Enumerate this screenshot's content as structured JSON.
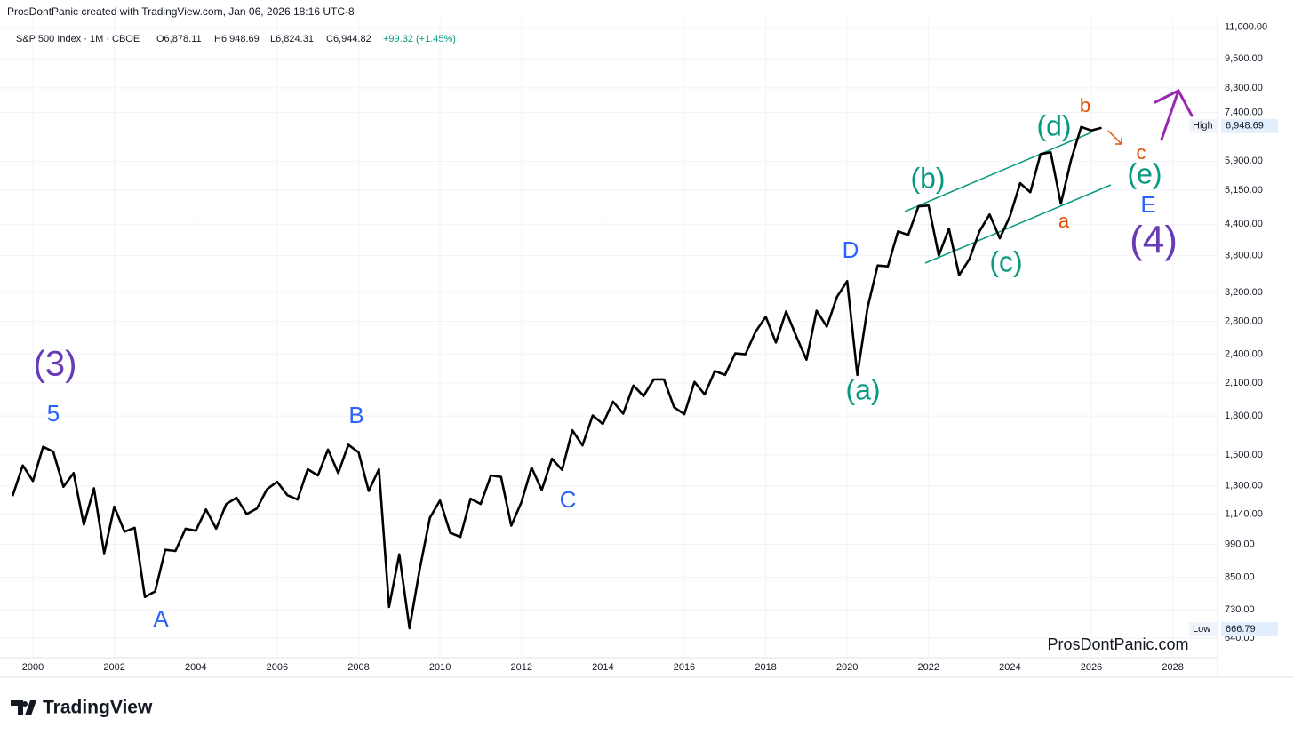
{
  "header": {
    "text": "ProsDontPanic created with TradingView.com, Jan 06, 2026 18:16 UTC-8"
  },
  "legend": {
    "symbol": "S&P 500 Index · 1M · CBOE",
    "ohlc": [
      "O6,878.11",
      "H6,948.69",
      "L6,824.31",
      "C6,944.82"
    ],
    "change": "+99.32 (+1.45%)"
  },
  "watermark": "ProsDontPanic.com",
  "brand": "TradingView",
  "chart_data": {
    "type": "line",
    "log_scale": true,
    "grid": true,
    "xlim": [
      1999.41,
      2028.99
    ],
    "xticks": [
      2000,
      2002,
      2004,
      2006,
      2008,
      2010,
      2012,
      2014,
      2016,
      2018,
      2020,
      2022,
      2024,
      2026,
      2028
    ],
    "ylim": [
      589,
      11600
    ],
    "yticks": [
      {
        "value": 640,
        "label": "640.00"
      },
      {
        "value": 730,
        "label": "730.00"
      },
      {
        "value": 850,
        "label": "850.00"
      },
      {
        "value": 990,
        "label": "990.00"
      },
      {
        "value": 1140,
        "label": "1,140.00"
      },
      {
        "value": 1300,
        "label": "1,300.00"
      },
      {
        "value": 1500,
        "label": "1,500.00"
      },
      {
        "value": 1800,
        "label": "1,800.00"
      },
      {
        "value": 2100,
        "label": "2,100.00"
      },
      {
        "value": 2400,
        "label": "2,400.00"
      },
      {
        "value": 2800,
        "label": "2,800.00"
      },
      {
        "value": 3200,
        "label": "3,200.00"
      },
      {
        "value": 3800,
        "label": "3,800.00"
      },
      {
        "value": 4400,
        "label": "4,400.00"
      },
      {
        "value": 5150,
        "label": "5,150.00"
      },
      {
        "value": 5900,
        "label": "5,900.00"
      },
      {
        "value": 7400,
        "label": "7,400.00"
      },
      {
        "value": 8300,
        "label": "8,300.00"
      },
      {
        "value": 9500,
        "label": "9,500.00"
      },
      {
        "value": 11000,
        "label": "11,000.00"
      }
    ],
    "x": [
      1999.5,
      1999.75,
      2000,
      2000.25,
      2000.5,
      2000.75,
      2001,
      2001.25,
      2001.5,
      2001.75,
      2002,
      2002.25,
      2002.5,
      2002.75,
      2003,
      2003.25,
      2003.5,
      2003.75,
      2004,
      2004.25,
      2004.5,
      2004.75,
      2005,
      2005.25,
      2005.5,
      2005.75,
      2006,
      2006.25,
      2006.5,
      2006.75,
      2007,
      2007.25,
      2007.5,
      2007.75,
      2008,
      2008.25,
      2008.5,
      2008.75,
      2009,
      2009.25,
      2009.5,
      2009.75,
      2010,
      2010.25,
      2010.5,
      2010.75,
      2011,
      2011.25,
      2011.5,
      2011.75,
      2012,
      2012.25,
      2012.5,
      2012.75,
      2013,
      2013.25,
      2013.5,
      2013.75,
      2014,
      2014.25,
      2014.5,
      2014.75,
      2015,
      2015.25,
      2015.5,
      2015.75,
      2016,
      2016.25,
      2016.5,
      2016.75,
      2017,
      2017.25,
      2017.5,
      2017.75,
      2018,
      2018.25,
      2018.5,
      2018.75,
      2019,
      2019.25,
      2019.5,
      2019.75,
      2020,
      2020.25,
      2020.5,
      2020.75,
      2021,
      2021.25,
      2021.5,
      2021.75,
      2022,
      2022.25,
      2022.5,
      2022.75,
      2023,
      2023.25,
      2023.5,
      2023.75,
      2024,
      2024.25,
      2024.5,
      2024.75,
      2025,
      2025.25,
      2025.5,
      2025.75,
      2026,
      2026.25
    ],
    "series": [
      {
        "name": "S&P 500 Index",
        "color": "#000000",
        "values": [
          1240,
          1430,
          1330,
          1560,
          1525,
          1295,
          1380,
          1085,
          1285,
          950,
          1180,
          1050,
          1070,
          775,
          795,
          965,
          960,
          1065,
          1055,
          1165,
          1065,
          1195,
          1230,
          1140,
          1170,
          1280,
          1325,
          1245,
          1220,
          1405,
          1365,
          1540,
          1380,
          1575,
          1520,
          1270,
          1405,
          740,
          945,
          670,
          880,
          1120,
          1215,
          1045,
          1025,
          1225,
          1195,
          1365,
          1355,
          1080,
          1205,
          1415,
          1275,
          1475,
          1400,
          1685,
          1570,
          1805,
          1735,
          1925,
          1820,
          2075,
          1975,
          2135,
          2135,
          1875,
          1815,
          2110,
          1990,
          2220,
          2180,
          2410,
          2400,
          2665,
          2860,
          2535,
          2930,
          2610,
          2340,
          2940,
          2730,
          3135,
          3375,
          2180,
          2980,
          3630,
          3615,
          4255,
          4185,
          4780,
          4800,
          3800,
          4310,
          3470,
          3735,
          4255,
          4605,
          4120,
          4565,
          5325,
          5105,
          6100,
          6150,
          4840,
          5925,
          6920,
          6805,
          6890
        ]
      }
    ],
    "high": {
      "label": "High",
      "value": 6948.69,
      "value_label": "6,948.69"
    },
    "low": {
      "label": "Low",
      "value": 666.79,
      "value_label": "666.79"
    },
    "annotations": [
      {
        "text": "(3)",
        "color": "#673ab7"
      },
      {
        "text": "5",
        "color": "#2962ff"
      },
      {
        "text": "A",
        "color": "#2962ff"
      },
      {
        "text": "B",
        "color": "#2962ff"
      },
      {
        "text": "C",
        "color": "#2962ff"
      },
      {
        "text": "D",
        "color": "#2962ff"
      },
      {
        "text": "(a)",
        "color": "#089981"
      },
      {
        "text": "(b)",
        "color": "#089981"
      },
      {
        "text": "(c)",
        "color": "#089981"
      },
      {
        "text": "(d)",
        "color": "#089981"
      },
      {
        "text": "(e)",
        "color": "#089981"
      },
      {
        "text": "a",
        "color": "#e65100"
      },
      {
        "text": "b",
        "color": "#e65100"
      },
      {
        "text": "c",
        "color": "#e65100"
      },
      {
        "text": "E",
        "color": "#2962ff"
      },
      {
        "text": "(4)",
        "color": "#673ab7"
      }
    ]
  }
}
